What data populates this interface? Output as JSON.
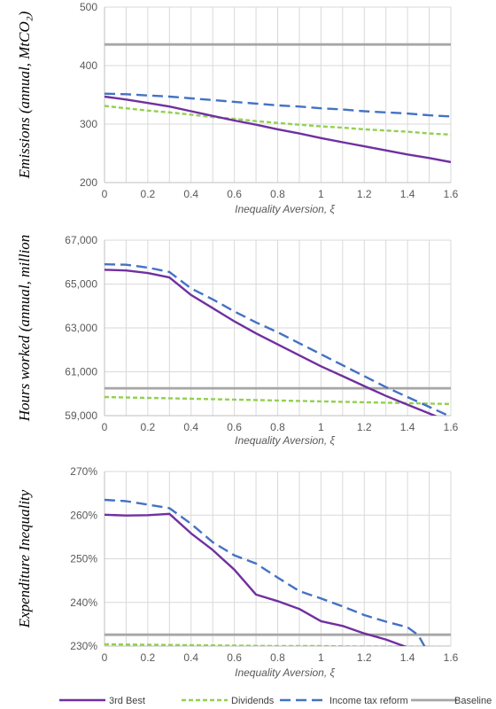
{
  "colors": {
    "third_best": "#7030A0",
    "dividends": "#92D050",
    "income_tax": "#4472C4",
    "baseline": "#A6A6A6",
    "grid": "#D9D9D9",
    "axis": "#BFBFBF"
  },
  "legend": [
    {
      "key": "third_best",
      "label": "3rd Best",
      "style": "solid"
    },
    {
      "key": "dividends",
      "label": "Dividends",
      "style": "dashed-short"
    },
    {
      "key": "income_tax",
      "label": "Income tax reform",
      "style": "dashed-long"
    },
    {
      "key": "baseline",
      "label": "Baseline",
      "style": "solid"
    }
  ],
  "chart_data": [
    {
      "type": "line",
      "xlabel": "Inequality Aversion, ξ",
      "ylabel": "Emissions (annual, MtCO₂)",
      "xlim": [
        0,
        1.6
      ],
      "ylim": [
        200,
        500
      ],
      "x_ticks": [
        "0",
        "0.2",
        "0.4",
        "0.6",
        "0.8",
        "1",
        "1.2",
        "1.4",
        "1.6"
      ],
      "y_ticks": [
        {
          "v": 200,
          "label": "200"
        },
        {
          "v": 300,
          "label": "300"
        },
        {
          "v": 400,
          "label": "400"
        },
        {
          "v": 500,
          "label": "500"
        }
      ],
      "grid": true,
      "series": [
        {
          "key": "third_best",
          "x": [
            0,
            0.1,
            0.2,
            0.3,
            0.4,
            0.5,
            0.6,
            0.7,
            0.8,
            0.9,
            1.0,
            1.1,
            1.2,
            1.3,
            1.4,
            1.5,
            1.6
          ],
          "y": [
            347,
            342,
            336,
            330,
            322,
            314,
            306,
            299,
            291,
            284,
            276,
            269,
            262,
            255,
            248,
            242,
            235
          ]
        },
        {
          "key": "dividends",
          "x": [
            0,
            0.1,
            0.2,
            0.3,
            0.4,
            0.5,
            0.6,
            0.7,
            0.8,
            0.9,
            1.0,
            1.1,
            1.2,
            1.3,
            1.4,
            1.5,
            1.6
          ],
          "y": [
            331,
            327,
            323,
            320,
            316,
            312,
            309,
            305,
            302,
            299,
            296,
            294,
            291,
            289,
            287,
            284,
            282
          ]
        },
        {
          "key": "income_tax",
          "x": [
            0,
            0.1,
            0.2,
            0.3,
            0.4,
            0.5,
            0.6,
            0.7,
            0.8,
            0.9,
            1.0,
            1.1,
            1.2,
            1.3,
            1.4,
            1.5,
            1.6
          ],
          "y": [
            352,
            351,
            349,
            347,
            344,
            341,
            338,
            335,
            332,
            330,
            327,
            325,
            322,
            320,
            318,
            315,
            313
          ]
        },
        {
          "key": "baseline",
          "x": [
            0,
            1.6
          ],
          "y": [
            436,
            436
          ]
        }
      ]
    },
    {
      "type": "line",
      "xlabel": "Inequality Aversion, ξ",
      "ylabel": "Hours worked (annual, million",
      "xlim": [
        0,
        1.6
      ],
      "ylim": [
        59000,
        67000
      ],
      "x_ticks": [
        "0",
        "0.2",
        "0.4",
        "0.6",
        "0.8",
        "1",
        "1.2",
        "1.4",
        "1.6"
      ],
      "y_ticks": [
        {
          "v": 59000,
          "label": "59,000"
        },
        {
          "v": 61000,
          "label": "61,000"
        },
        {
          "v": 63000,
          "label": "63,000"
        },
        {
          "v": 65000,
          "label": "65,000"
        },
        {
          "v": 67000,
          "label": "67,000"
        }
      ],
      "grid": true,
      "series": [
        {
          "key": "third_best",
          "x": [
            0,
            0.1,
            0.2,
            0.3,
            0.4,
            0.5,
            0.6,
            0.7,
            0.8,
            0.9,
            1.0,
            1.1,
            1.2,
            1.3,
            1.4,
            1.5,
            1.55
          ],
          "y": [
            65650,
            65620,
            65500,
            65300,
            64500,
            63900,
            63300,
            62750,
            62250,
            61750,
            61250,
            60800,
            60350,
            59900,
            59500,
            59100,
            58900
          ]
        },
        {
          "key": "dividends",
          "x": [
            0,
            0.1,
            0.2,
            0.3,
            0.4,
            0.5,
            0.6,
            0.7,
            0.8,
            0.9,
            1.0,
            1.1,
            1.2,
            1.3,
            1.4,
            1.5,
            1.6
          ],
          "y": [
            59850,
            59830,
            59810,
            59790,
            59770,
            59750,
            59730,
            59710,
            59690,
            59670,
            59650,
            59630,
            59610,
            59590,
            59570,
            59550,
            59530
          ]
        },
        {
          "key": "income_tax",
          "x": [
            0,
            0.1,
            0.2,
            0.3,
            0.4,
            0.5,
            0.6,
            0.7,
            0.8,
            0.9,
            1.0,
            1.1,
            1.2,
            1.3,
            1.4,
            1.5,
            1.6
          ],
          "y": [
            65900,
            65880,
            65750,
            65550,
            64800,
            64300,
            63750,
            63250,
            62800,
            62300,
            61800,
            61300,
            60800,
            60300,
            59850,
            59400,
            58950
          ]
        },
        {
          "key": "baseline",
          "x": [
            0,
            1.6
          ],
          "y": [
            60250,
            60250
          ]
        }
      ]
    },
    {
      "type": "line",
      "xlabel": "Inequality Aversion, ξ",
      "ylabel": "Expenditure Inequality",
      "xlim": [
        0,
        1.6
      ],
      "ylim": [
        230,
        270
      ],
      "x_ticks": [
        "0",
        "0.2",
        "0.4",
        "0.6",
        "0.8",
        "1",
        "1.2",
        "1.4",
        "1.6"
      ],
      "y_ticks": [
        {
          "v": 230,
          "label": "230%"
        },
        {
          "v": 240,
          "label": "240%"
        },
        {
          "v": 250,
          "label": "250%"
        },
        {
          "v": 260,
          "label": "260%"
        },
        {
          "v": 270,
          "label": "270%"
        }
      ],
      "grid": true,
      "series": [
        {
          "key": "third_best",
          "x": [
            0,
            0.1,
            0.2,
            0.3,
            0.4,
            0.5,
            0.6,
            0.7,
            0.8,
            0.9,
            1.0,
            1.1,
            1.2,
            1.3,
            1.4
          ],
          "y": [
            260.1,
            259.9,
            260.0,
            260.3,
            255.8,
            252.0,
            247.5,
            241.8,
            240.3,
            238.5,
            235.7,
            234.6,
            232.9,
            231.5,
            229.7
          ]
        },
        {
          "key": "dividends",
          "x": [
            0,
            0.2,
            0.4,
            0.6,
            0.8,
            1.0,
            1.2,
            1.4,
            1.6
          ],
          "y": [
            230.4,
            230.3,
            230.2,
            230.1,
            230.0,
            230.0,
            229.9,
            229.9,
            229.8
          ]
        },
        {
          "key": "income_tax",
          "x": [
            0,
            0.1,
            0.2,
            0.3,
            0.4,
            0.5,
            0.6,
            0.7,
            0.8,
            0.9,
            1.0,
            1.1,
            1.2,
            1.3,
            1.4,
            1.45,
            1.48
          ],
          "y": [
            263.5,
            263.2,
            262.4,
            261.6,
            258.0,
            253.8,
            250.8,
            248.9,
            245.7,
            242.6,
            240.9,
            239.1,
            237.1,
            235.6,
            234.3,
            232.5,
            229.8
          ]
        },
        {
          "key": "baseline",
          "x": [
            0,
            1.6
          ],
          "y": [
            232.6,
            232.6
          ]
        }
      ]
    }
  ]
}
